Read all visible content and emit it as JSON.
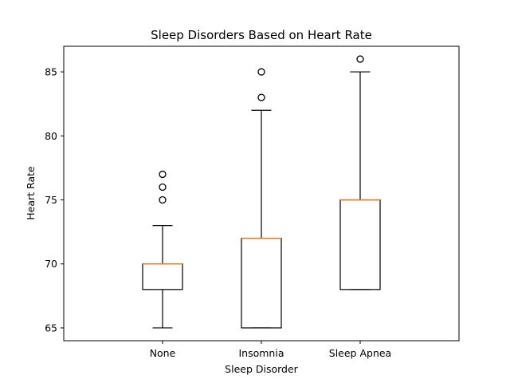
{
  "chart_data": {
    "type": "box",
    "title": "Sleep Disorders Based on Heart Rate",
    "xlabel": "Sleep Disorder",
    "ylabel": "Heart Rate",
    "ylim": [
      64,
      87
    ],
    "yticks": [
      65,
      70,
      75,
      80,
      85
    ],
    "categories": [
      "None",
      "Insomnia",
      "Sleep Apnea"
    ],
    "boxes": [
      {
        "category": "None",
        "whisker_low": 65,
        "q1": 68,
        "median": 70,
        "q3": 70,
        "whisker_high": 73,
        "fliers": [
          75,
          76,
          77
        ]
      },
      {
        "category": "Insomnia",
        "whisker_low": 65,
        "q1": 65,
        "median": 72,
        "q3": 72,
        "whisker_high": 82,
        "fliers": [
          83,
          85
        ]
      },
      {
        "category": "Sleep Apnea",
        "whisker_low": 68,
        "q1": 68,
        "median": 75,
        "q3": 75,
        "whisker_high": 85,
        "fliers": [
          86
        ]
      }
    ],
    "grid": false,
    "colors": {
      "median": "#e1812c",
      "box": "#000000"
    }
  }
}
